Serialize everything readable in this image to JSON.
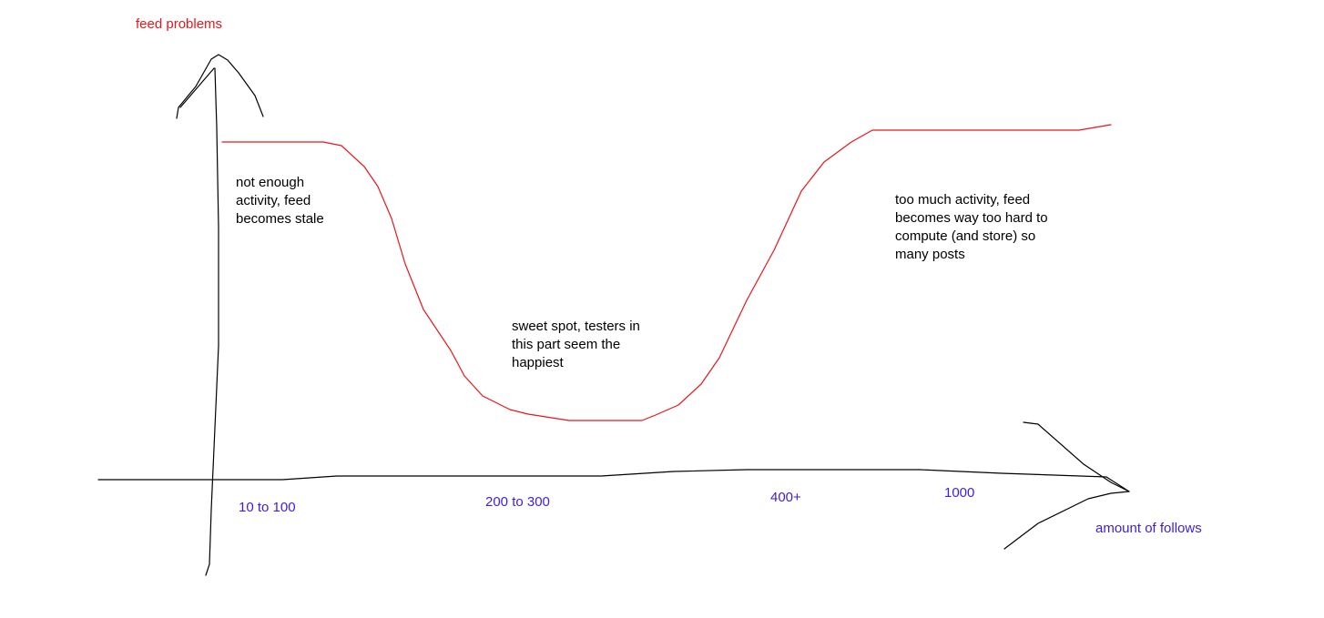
{
  "y_axis_label": "feed problems",
  "x_axis_label": "amount of follows",
  "x_labels": [
    "10 to 100",
    "200 to 300",
    "400+",
    "1000"
  ],
  "annotations": [
    {
      "lines": [
        "not enough",
        "activity, feed",
        "becomes stale"
      ]
    },
    {
      "lines": [
        "sweet spot, testers in",
        "this part seem the",
        "happiest"
      ]
    },
    {
      "lines": [
        "too much activity, feed",
        "becomes way too hard to",
        "compute (and store) so",
        "many posts"
      ]
    }
  ]
}
